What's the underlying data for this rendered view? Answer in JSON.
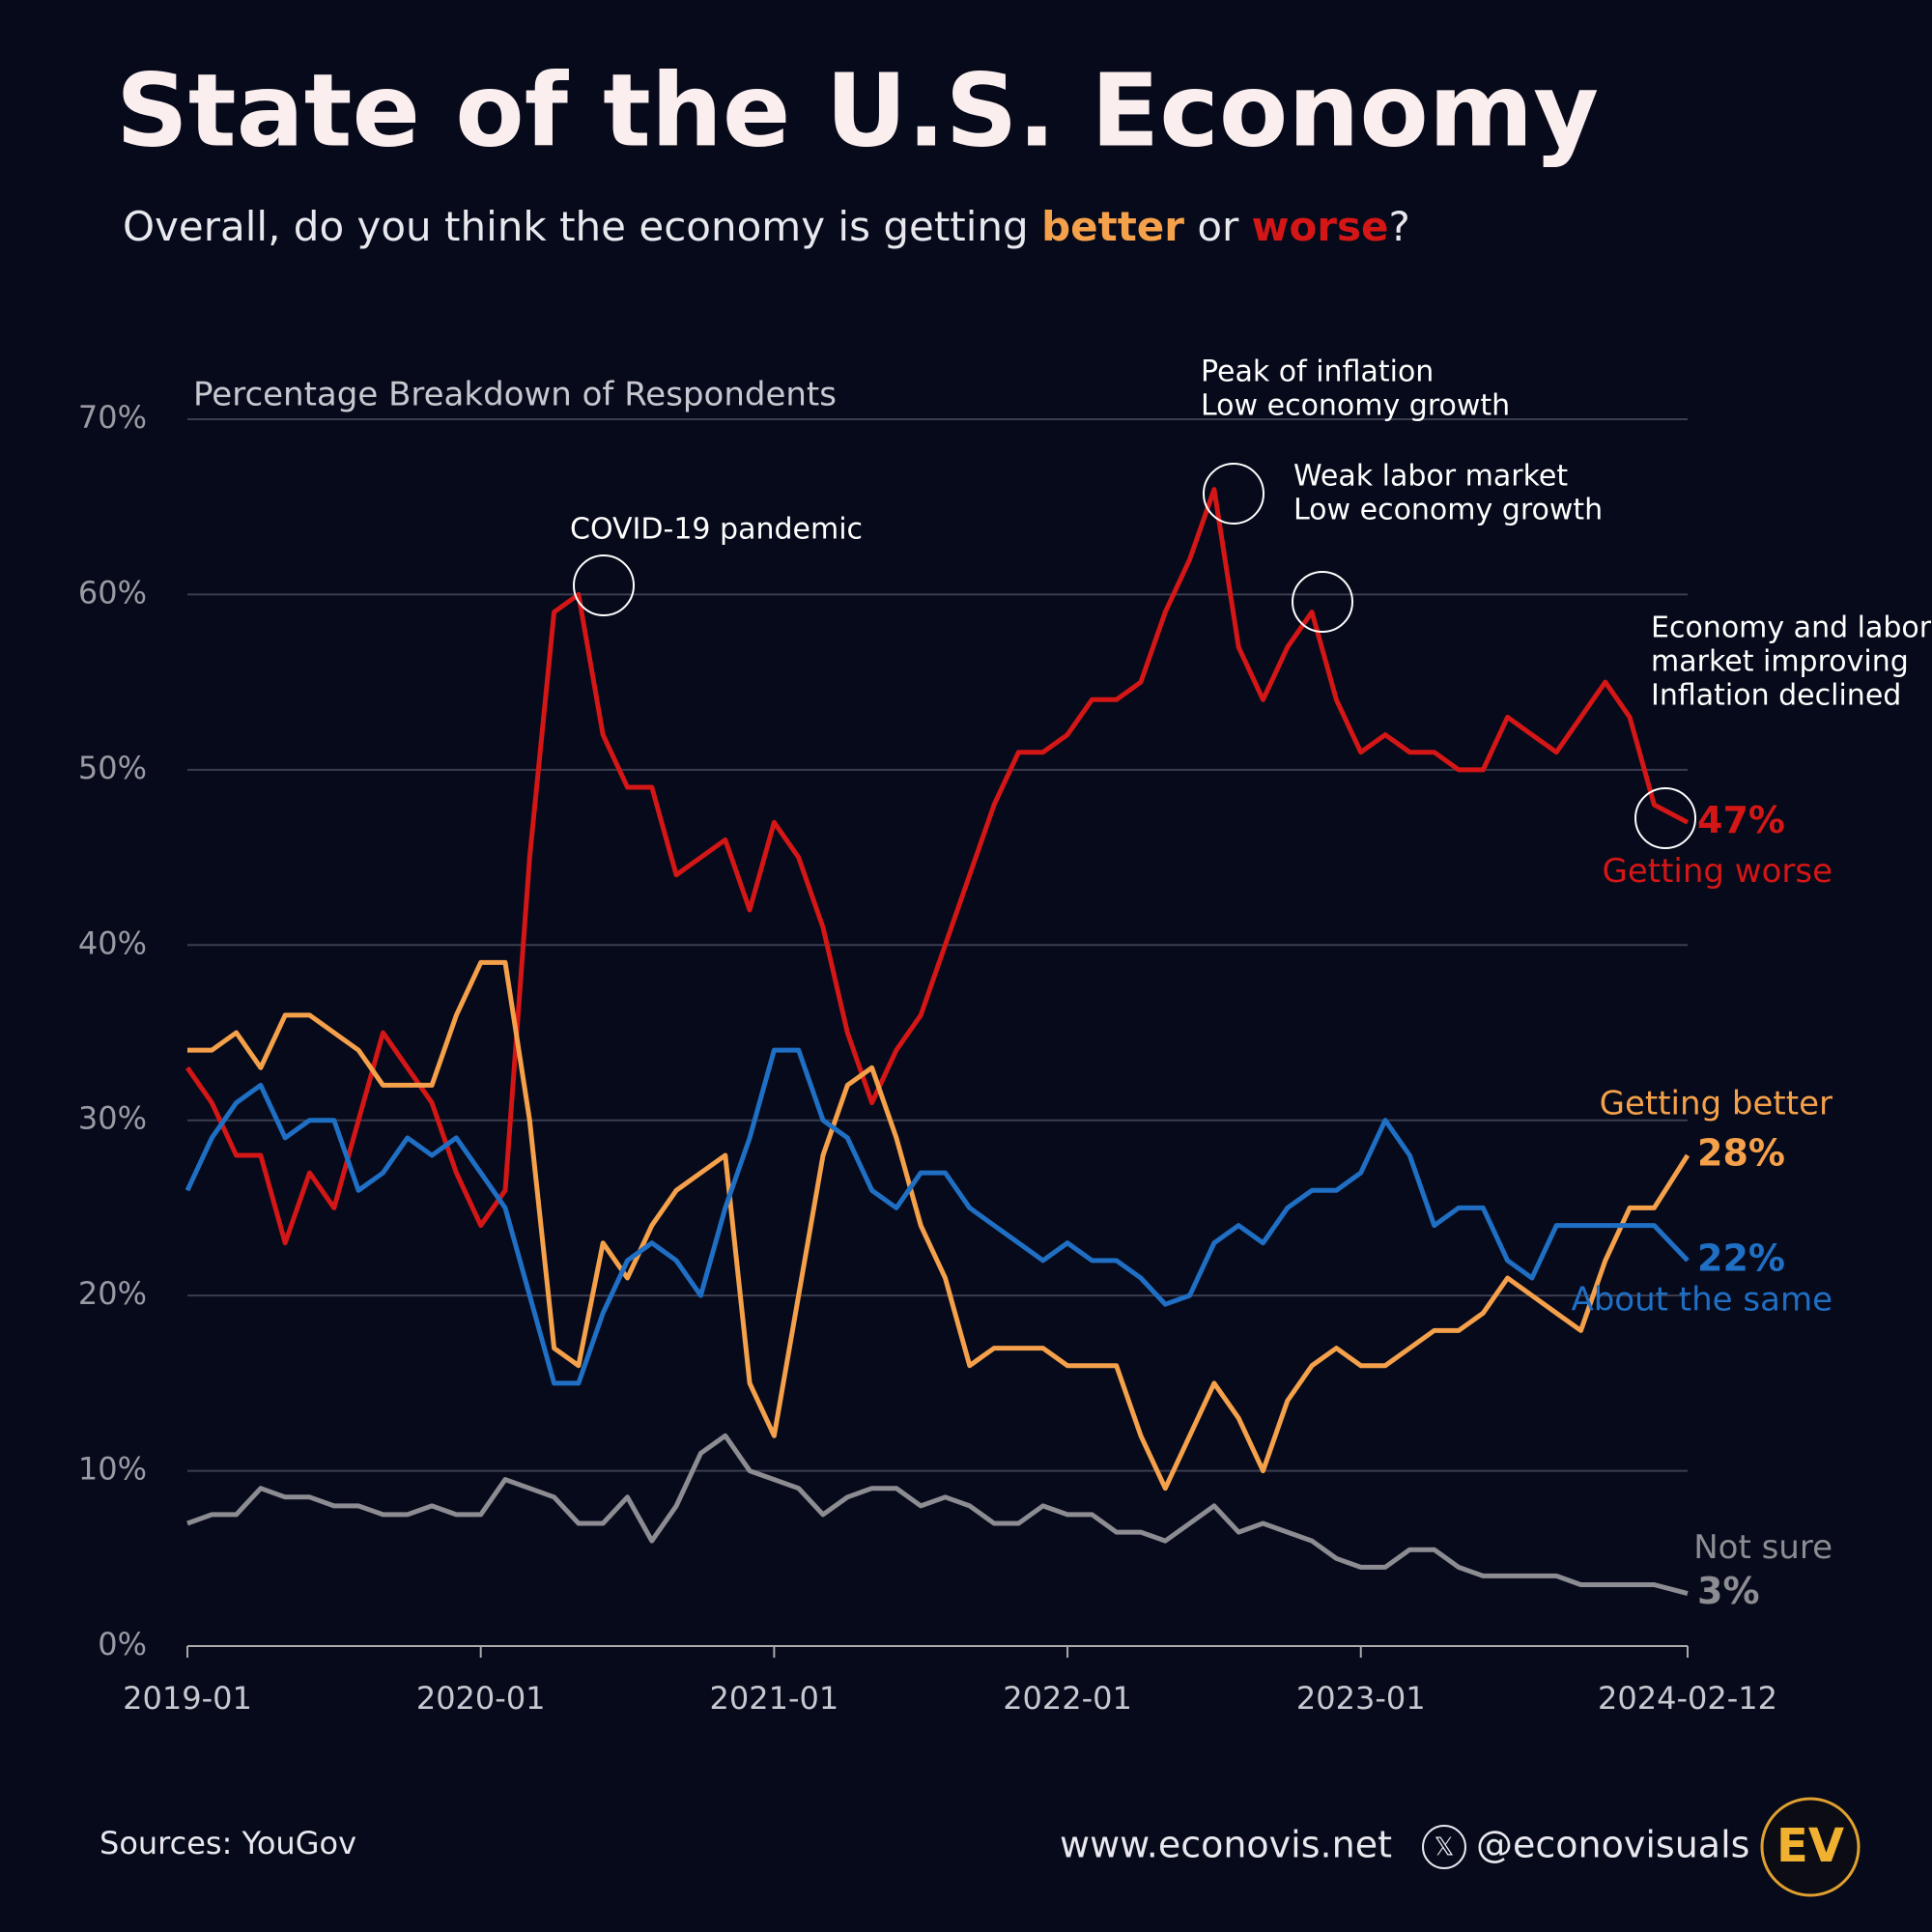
{
  "chart_data": {
    "type": "line",
    "title": "State of the U.S. Economy",
    "subtitle": [
      {
        "text": "Overall, do you think the economy is getting ",
        "color": "#e8e8ee"
      },
      {
        "text": "better",
        "color": "#f5a04a"
      },
      {
        "text": " or ",
        "color": "#e8e8ee"
      },
      {
        "text": "worse",
        "color": "#d41616"
      },
      {
        "text": "?",
        "color": "#e8e8ee"
      }
    ],
    "y_label": "Percentage Breakdown of Respondents",
    "x": [
      "2019-01",
      "2019-02",
      "2019-03",
      "2019-04",
      "2019-05",
      "2019-06",
      "2019-07",
      "2019-08",
      "2019-09",
      "2019-10",
      "2019-11",
      "2019-12",
      "2020-01",
      "2020-02",
      "2020-03",
      "2020-04",
      "2020-05",
      "2020-06",
      "2020-07",
      "2020-08",
      "2020-09",
      "2020-10",
      "2020-11",
      "2020-12",
      "2021-01",
      "2021-02",
      "2021-03",
      "2021-04",
      "2021-05",
      "2021-06",
      "2021-07",
      "2021-08",
      "2021-09",
      "2021-10",
      "2021-11",
      "2021-12",
      "2022-01",
      "2022-02",
      "2022-03",
      "2022-04",
      "2022-05",
      "2022-06",
      "2022-07",
      "2022-08",
      "2022-09",
      "2022-10",
      "2022-11",
      "2022-12",
      "2023-01",
      "2023-02",
      "2023-03",
      "2023-04",
      "2023-05",
      "2023-06",
      "2023-07",
      "2023-08",
      "2023-09",
      "2023-10",
      "2023-11",
      "2023-12",
      "2024-01",
      "2024-02-12"
    ],
    "series": [
      {
        "name": "Getting worse",
        "color": "#d41616",
        "end_label": "47%",
        "values": [
          33,
          31,
          28,
          28,
          23,
          27,
          25,
          30,
          35,
          33,
          31,
          27,
          24,
          26,
          45,
          59,
          60,
          52,
          49,
          49,
          44,
          45,
          46,
          42,
          47,
          45,
          41,
          35,
          31,
          34,
          36,
          40,
          44,
          48,
          51,
          51,
          52,
          54,
          54,
          55,
          59,
          62,
          66,
          57,
          54,
          57,
          59,
          54,
          51,
          52,
          51,
          51,
          50,
          50,
          53,
          52,
          51,
          53,
          55,
          53,
          48,
          47
        ]
      },
      {
        "name": "Getting better",
        "color": "#f5a04a",
        "end_label": "28%",
        "values": [
          34,
          34,
          35,
          33,
          36,
          36,
          35,
          34,
          32,
          32,
          32,
          36,
          39,
          39,
          30,
          17,
          16,
          23,
          21,
          24,
          26,
          27,
          28,
          15,
          12,
          20,
          28,
          32,
          33,
          29,
          24,
          21,
          16,
          17,
          17,
          17,
          16,
          16,
          16,
          12,
          9,
          12,
          15,
          13,
          10,
          14,
          16,
          17,
          16,
          16,
          17,
          18,
          18,
          19,
          21,
          20,
          19,
          18,
          22,
          25,
          25,
          28
        ]
      },
      {
        "name": "About the same",
        "color": "#1f6fc5",
        "end_label": "22%",
        "values": [
          26,
          29,
          31,
          32,
          29,
          30,
          30,
          26,
          27,
          29,
          28,
          29,
          27,
          25,
          20,
          15,
          15,
          19,
          22,
          23,
          22,
          20,
          25,
          29,
          34,
          34,
          30,
          29,
          26,
          25,
          27,
          27,
          25,
          24,
          23,
          22,
          23,
          22,
          22,
          21,
          19.5,
          20,
          23,
          24,
          23,
          25,
          26,
          26,
          27,
          30,
          28,
          24,
          25,
          25,
          22,
          21,
          24,
          24,
          24,
          24,
          24,
          22
        ]
      },
      {
        "name": "Not sure",
        "color": "#8c8c92",
        "end_label": "3%",
        "values": [
          7,
          7.5,
          7.5,
          9,
          8.5,
          8.5,
          8,
          8,
          7.5,
          7.5,
          8,
          7.5,
          7.5,
          9.5,
          9,
          8.5,
          7,
          7,
          8.5,
          6,
          8,
          11,
          12,
          10,
          9.5,
          9,
          7.5,
          8.5,
          9,
          9,
          8,
          8.5,
          8,
          7,
          7,
          8,
          7.5,
          7.5,
          6.5,
          6.5,
          6,
          7,
          8,
          6.5,
          7,
          6.5,
          6,
          5,
          4.5,
          4.5,
          5.5,
          5.5,
          4.5,
          4,
          4,
          4,
          4,
          3.5,
          3.5,
          3.5,
          3.5,
          3
        ]
      }
    ],
    "xlim": [
      "2019-01",
      "2024-02-12"
    ],
    "xticks": [
      "2019-01",
      "2020-01",
      "2021-01",
      "2022-01",
      "2023-01",
      "2024-02-12"
    ],
    "ylim": [
      0,
      70
    ],
    "yticks": [
      {
        "value": 0,
        "label": "0%"
      },
      {
        "value": 10,
        "label": "10%"
      },
      {
        "value": 20,
        "label": "20%"
      },
      {
        "value": 30,
        "label": "30%"
      },
      {
        "value": 40,
        "label": "40%"
      },
      {
        "value": 50,
        "label": "50%"
      },
      {
        "value": 60,
        "label": "60%"
      },
      {
        "value": 70,
        "label": "70%"
      }
    ],
    "grid": true,
    "annotations": [
      [
        "COVID-19 pandemic"
      ],
      [
        "Peak of inflation",
        "Low economy growth"
      ],
      [
        "Weak labor market",
        "Low economy growth"
      ],
      [
        "Economy and labor",
        "market improving",
        "Inflation declined"
      ]
    ],
    "footer": {
      "source": "Sources: YouGov",
      "website": "www.econovis.net",
      "handle": "@econovisuals",
      "logo": "EV"
    }
  }
}
